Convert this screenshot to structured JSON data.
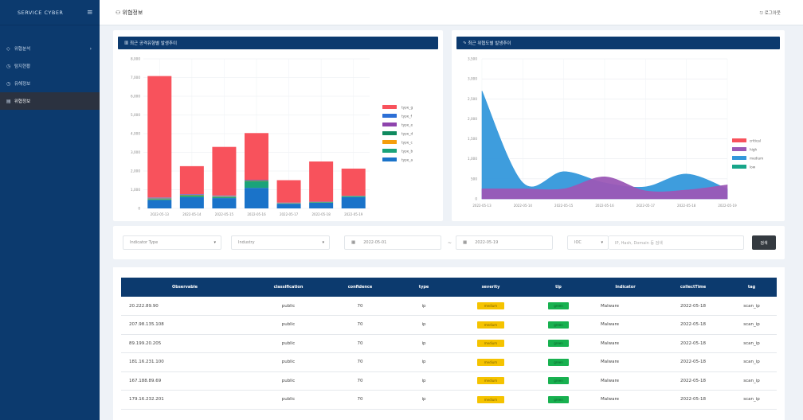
{
  "app": {
    "brand": "SERVICE CYBER",
    "page_title": "위협정보",
    "logout_label": "로그아웃"
  },
  "sidebar": {
    "items": [
      {
        "label": "위협분석",
        "icon": "shield-icon",
        "has_submenu": true
      },
      {
        "label": "탐지현황",
        "icon": "clock-icon",
        "has_submenu": false
      },
      {
        "label": "유해정보",
        "icon": "clock-icon",
        "has_submenu": false
      },
      {
        "label": "위협정보",
        "icon": "document-icon",
        "has_submenu": false,
        "active": true
      }
    ]
  },
  "charts": {
    "left_title": "최근 공격유형별 발생추이",
    "right_title": "최근 위협도별 발생추이"
  },
  "chart_data": [
    {
      "type": "bar",
      "stacked": true,
      "title": "최근 공격유형별 발생추이",
      "categories": [
        "2022-05-13",
        "2022-05-14",
        "2022-05-15",
        "2022-05-16",
        "2022-05-17",
        "2022-05-18",
        "2022-05-19"
      ],
      "ylim": [
        0,
        8000
      ],
      "yticks": [
        "0",
        "1,000",
        "2,000",
        "3,000",
        "4,000",
        "5,000",
        "6,000",
        "7,000",
        "8,000"
      ],
      "grid": true,
      "legend": "right",
      "series": [
        {
          "name": "type_a",
          "color": "#1a73c9",
          "values": [
            450,
            600,
            550,
            1100,
            250,
            300,
            600
          ]
        },
        {
          "name": "type_b",
          "color": "#1aa37a",
          "values": [
            50,
            80,
            60,
            350,
            20,
            20,
            40
          ]
        },
        {
          "name": "type_c",
          "color": "#f59e0b",
          "values": [
            20,
            20,
            20,
            20,
            10,
            10,
            10
          ]
        },
        {
          "name": "type_d",
          "color": "#0f8a5f",
          "values": [
            20,
            20,
            20,
            20,
            10,
            10,
            10
          ]
        },
        {
          "name": "type_e",
          "color": "#8e44ad",
          "values": [
            20,
            20,
            20,
            20,
            10,
            10,
            10
          ]
        },
        {
          "name": "type_f",
          "color": "#2c6fd6",
          "values": [
            20,
            20,
            20,
            20,
            10,
            10,
            10
          ]
        },
        {
          "name": "type_g",
          "color": "#f8525c",
          "values": [
            6500,
            1500,
            2600,
            2500,
            1200,
            2150,
            1450
          ]
        }
      ]
    },
    {
      "type": "area",
      "title": "최근 위협도별 발생추이",
      "categories": [
        "2022-05-13",
        "2022-05-14",
        "2022-05-15",
        "2022-05-16",
        "2022-05-17",
        "2022-05-18",
        "2022-05-19"
      ],
      "ylim": [
        0,
        3500
      ],
      "yticks": [
        "0",
        "500",
        "1,000",
        "1,500",
        "2,000",
        "2,500",
        "3,000",
        "3,500"
      ],
      "grid": true,
      "legend": "right",
      "series": [
        {
          "name": "critical",
          "color": "#f8525c",
          "values": [
            0,
            0,
            0,
            0,
            0,
            0,
            0
          ]
        },
        {
          "name": "high",
          "color": "#9b59b6",
          "values": [
            250,
            250,
            250,
            550,
            200,
            220,
            350
          ]
        },
        {
          "name": "medium",
          "color": "#3498db",
          "values": [
            2700,
            400,
            680,
            400,
            300,
            620,
            250
          ]
        },
        {
          "name": "low",
          "color": "#17a589",
          "values": [
            0,
            0,
            0,
            0,
            0,
            0,
            0
          ]
        }
      ]
    }
  ],
  "filters": {
    "select1": "Indicator Type",
    "select2": "Industry",
    "date_from": "2022-05-01",
    "date_to": "2022-05-19",
    "select3": "IOC",
    "search_placeholder": "IP, Hash, Domain 등 검색",
    "search_button": "검색"
  },
  "table": {
    "headers": [
      "Observable",
      "classification",
      "confidence",
      "type",
      "severity",
      "tlp",
      "Indicator",
      "collectTime",
      "tag"
    ],
    "rows": [
      {
        "observable": "20.222.89.90",
        "classification": "public",
        "confidence": "70",
        "type": "ip",
        "severity": "medium",
        "tlp": "green",
        "indicator": "Malware",
        "collect": "2022-05-18",
        "tag": "scan_ip"
      },
      {
        "observable": "207.98.135.108",
        "classification": "public",
        "confidence": "70",
        "type": "ip",
        "severity": "medium",
        "tlp": "green",
        "indicator": "Malware",
        "collect": "2022-05-18",
        "tag": "scan_ip"
      },
      {
        "observable": "89.199.20.205",
        "classification": "public",
        "confidence": "70",
        "type": "ip",
        "severity": "medium",
        "tlp": "green",
        "indicator": "Malware",
        "collect": "2022-05-18",
        "tag": "scan_ip"
      },
      {
        "observable": "181.16.231.100",
        "classification": "public",
        "confidence": "70",
        "type": "ip",
        "severity": "medium",
        "tlp": "green",
        "indicator": "Malware",
        "collect": "2022-05-18",
        "tag": "scan_ip"
      },
      {
        "observable": "167.188.89.69",
        "classification": "public",
        "confidence": "70",
        "type": "ip",
        "severity": "medium",
        "tlp": "green",
        "indicator": "Malware",
        "collect": "2022-05-18",
        "tag": "scan_ip"
      },
      {
        "observable": "179.16.232.201",
        "classification": "public",
        "confidence": "70",
        "type": "ip",
        "severity": "medium",
        "tlp": "green",
        "indicator": "Malware",
        "collect": "2022-05-18",
        "tag": "scan_ip"
      }
    ]
  }
}
